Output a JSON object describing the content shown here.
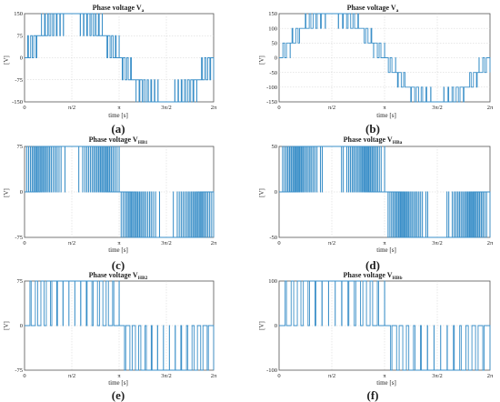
{
  "accent_color": "#3a8fc8",
  "chart_data": [
    {
      "id": "a",
      "type": "line",
      "title": "Phase voltage V",
      "title_sub": "a",
      "ylabel": "[V]",
      "xlabel": "time [s]",
      "ylim": [
        -150,
        150
      ],
      "yticks": [
        -150,
        -75,
        0,
        75,
        150
      ],
      "xticks": [
        "0",
        "π/2",
        "π",
        "3π/2",
        "2π"
      ],
      "panel_label": "(a)",
      "series": [
        {
          "levels": [
            0,
            75,
            150
          ],
          "pulses_per_edge": 7
        }
      ]
    },
    {
      "id": "b",
      "type": "line",
      "title": "Phase voltage V",
      "title_sub": "a",
      "ylabel": "[V]",
      "xlabel": "time [s]",
      "ylim": [
        -150,
        150
      ],
      "yticks": [
        -150,
        -100,
        -50,
        0,
        50,
        100,
        150
      ],
      "xticks": [
        "0",
        "π/2",
        "π",
        "3π/2",
        "2π"
      ],
      "panel_label": "(b)",
      "series": [
        {
          "levels": [
            0,
            50,
            100,
            150
          ],
          "pulses_per_edge": 4
        }
      ]
    },
    {
      "id": "c",
      "type": "line",
      "title": "Phase voltage V",
      "title_sub": "HB1",
      "ylabel": "[V]",
      "xlabel": "time [s]",
      "ylim": [
        -75,
        75
      ],
      "yticks": [
        -75,
        0,
        75
      ],
      "xticks": [
        "0",
        "π/2",
        "π",
        "3π/2",
        "2π"
      ],
      "panel_label": "(c)",
      "series": [
        {
          "levels": [
            0,
            75
          ],
          "pulses_per_edge": 24
        }
      ]
    },
    {
      "id": "d",
      "type": "line",
      "title": "Phase voltage V",
      "title_sub": "HBa",
      "ylabel": "[V]",
      "xlabel": "time [s]",
      "ylim": [
        -50,
        50
      ],
      "yticks": [
        -50,
        0,
        50
      ],
      "xticks": [
        "0",
        "π/2",
        "π",
        "3π/2",
        "2π"
      ],
      "panel_label": "(d)",
      "series": [
        {
          "levels": [
            0,
            50
          ],
          "pulses_per_edge": 30
        }
      ]
    },
    {
      "id": "e",
      "type": "line",
      "title": "Phase voltage V",
      "title_sub": "HB2",
      "ylabel": "[V]",
      "xlabel": "time [s]",
      "ylim": [
        -75,
        75
      ],
      "yticks": [
        -75,
        0,
        75
      ],
      "xticks": [
        "0",
        "π/2",
        "π",
        "3π/2",
        "2π"
      ],
      "panel_label": "(e)",
      "series": [
        {
          "levels": [
            0,
            75
          ],
          "pulses_per_edge": 8
        }
      ]
    },
    {
      "id": "f",
      "type": "line",
      "title": "Phase voltage V",
      "title_sub": "HBb",
      "ylabel": "[V]",
      "xlabel": "time [s]",
      "ylim": [
        -100,
        100
      ],
      "yticks": [
        -100,
        0,
        100
      ],
      "xticks": [
        "0",
        "π/2",
        "π",
        "3π/2",
        "2π"
      ],
      "panel_label": "(f)",
      "series": [
        {
          "levels": [
            0,
            100
          ],
          "pulses_per_edge": 8
        }
      ]
    }
  ]
}
